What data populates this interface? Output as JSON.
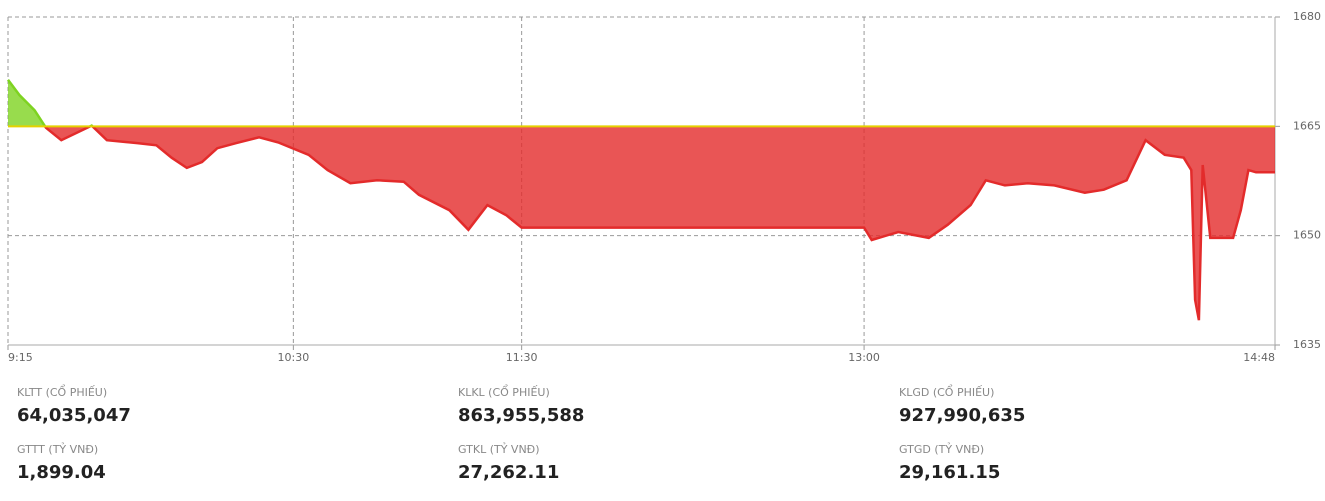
{
  "chart_data": {
    "type": "area-line",
    "x": [
      555,
      558,
      562,
      565,
      569,
      577,
      581,
      589,
      594,
      598,
      602,
      606,
      610,
      615,
      621,
      626,
      634,
      639,
      645,
      652,
      659,
      663,
      671,
      676,
      681,
      686,
      690,
      780,
      782,
      789,
      797,
      802,
      808,
      812,
      817,
      823,
      830,
      838,
      843,
      849,
      854,
      859,
      864,
      866,
      867,
      868,
      869,
      871,
      877,
      879,
      881,
      883,
      888
    ],
    "values": [
      1671.4,
      1669.3,
      1667.2,
      1664.8,
      1663.1,
      1665.1,
      1663.1,
      1662.7,
      1662.4,
      1660.7,
      1659.3,
      1660.1,
      1662.0,
      1662.7,
      1663.5,
      1662.8,
      1661.1,
      1659.0,
      1657.2,
      1657.6,
      1657.4,
      1655.6,
      1653.5,
      1650.8,
      1654.2,
      1652.8,
      1651.1,
      1651.1,
      1649.4,
      1650.5,
      1649.7,
      1651.5,
      1654.2,
      1657.6,
      1656.9,
      1657.2,
      1656.9,
      1655.9,
      1656.3,
      1657.6,
      1663.1,
      1661.1,
      1660.7,
      1659.0,
      1641.2,
      1638.4,
      1659.7,
      1649.7,
      1649.7,
      1653.5,
      1659.0,
      1658.7,
      1658.7
    ],
    "reference": 1665,
    "up_color": "#7ed321",
    "down_color": "#e32b2b",
    "reference_color": "#e5d100",
    "xlim": [
      555,
      888
    ],
    "xticks": [
      {
        "value": 555,
        "label": "9:15"
      },
      {
        "value": 630,
        "label": "10:30"
      },
      {
        "value": 690,
        "label": "11:30"
      },
      {
        "value": 780,
        "label": "13:00"
      },
      {
        "value": 888,
        "label": "14:48"
      }
    ],
    "ylim": [
      1635,
      1680
    ],
    "yticks": [
      1635,
      1650,
      1665,
      1680
    ],
    "grid": true
  },
  "stats": [
    {
      "label": "KLTT (CỔ PHIẾU)",
      "value": "64,035,047"
    },
    {
      "label": "KLKL (CỔ PHIẾU)",
      "value": "863,955,588"
    },
    {
      "label": "KLGD (CỔ PHIẾU)",
      "value": "927,990,635"
    },
    {
      "label": "GTTT (TỶ VNĐ)",
      "value": "1,899.04"
    },
    {
      "label": "GTKL (TỶ VNĐ)",
      "value": "27,262.11"
    },
    {
      "label": "GTGD (TỶ VNĐ)",
      "value": "29,161.15"
    }
  ]
}
